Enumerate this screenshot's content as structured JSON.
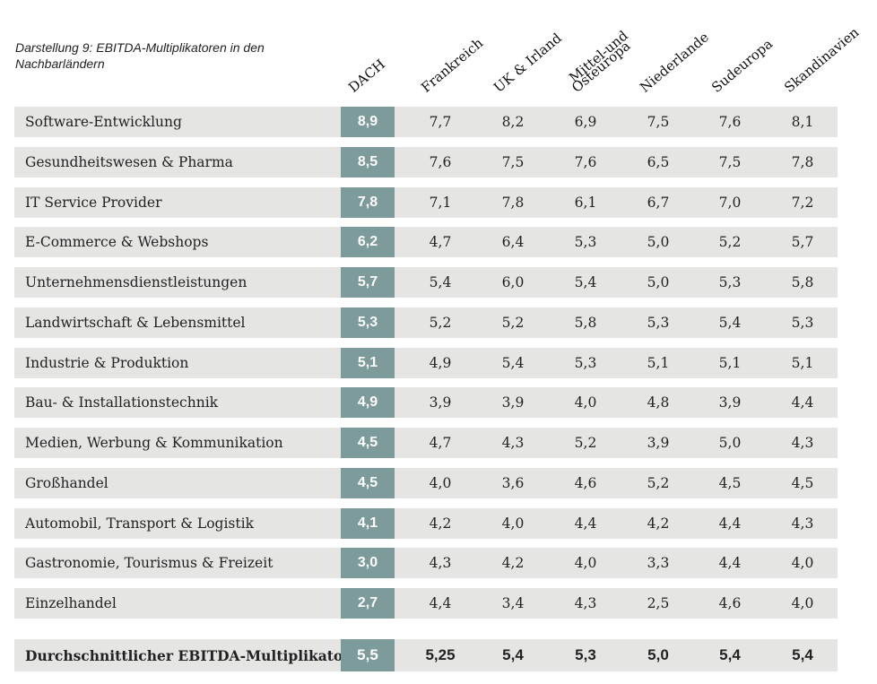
{
  "caption": "Darstellung 9: EBITDA-Multiplikatoren in den Nachbarländern",
  "chart_data": {
    "type": "table",
    "title": "Darstellung 9: EBITDA-Multiplikatoren in den Nachbarländern",
    "columns": [
      "DACH",
      "Frankreich",
      "UK & Irland",
      "Mittel-und Osteuropa",
      "Niederlande",
      "Sudeuropa",
      "Skandinavien"
    ],
    "column_lines": [
      [
        "DACH"
      ],
      [
        "Frankreich"
      ],
      [
        "UK & Irland"
      ],
      [
        "Mittel-und",
        "Osteuropa"
      ],
      [
        "Niederlande"
      ],
      [
        "Sudeuropa"
      ],
      [
        "Skandinavien"
      ]
    ],
    "rows": [
      {
        "label": "Software-Entwicklung",
        "values": [
          "8,9",
          "7,7",
          "8,2",
          "6,9",
          "7,5",
          "7,6",
          "8,1"
        ]
      },
      {
        "label": "Gesundheitswesen & Pharma",
        "values": [
          "8,5",
          "7,6",
          "7,5",
          "7,6",
          "6,5",
          "7,5",
          "7,8"
        ]
      },
      {
        "label": "IT Service Provider",
        "values": [
          "7,8",
          "7,1",
          "7,8",
          "6,1",
          "6,7",
          "7,0",
          "7,2"
        ]
      },
      {
        "label": "E-Commerce & Webshops",
        "values": [
          "6,2",
          "4,7",
          "6,4",
          "5,3",
          "5,0",
          "5,2",
          "5,7"
        ]
      },
      {
        "label": "Unternehmensdienstleistungen",
        "values": [
          "5,7",
          "5,4",
          "6,0",
          "5,4",
          "5,0",
          "5,3",
          "5,8"
        ]
      },
      {
        "label": "Landwirtschaft & Lebensmittel",
        "values": [
          "5,3",
          "5,2",
          "5,2",
          "5,8",
          "5,3",
          "5,4",
          "5,3"
        ]
      },
      {
        "label": "Industrie & Produktion",
        "values": [
          "5,1",
          "4,9",
          "5,4",
          "5,3",
          "5,1",
          "5,1",
          "5,1"
        ]
      },
      {
        "label": "Bau- & Installationstechnik",
        "values": [
          "4,9",
          "3,9",
          "3,9",
          "4,0",
          "4,8",
          "3,9",
          "4,4"
        ]
      },
      {
        "label": "Medien, Werbung & Kommunikation",
        "values": [
          "4,5",
          "4,7",
          "4,3",
          "5,2",
          "3,9",
          "5,0",
          "4,3"
        ]
      },
      {
        "label": "Großhandel",
        "values": [
          "4,5",
          "4,0",
          "3,6",
          "4,6",
          "5,2",
          "4,5",
          "4,5"
        ]
      },
      {
        "label": "Automobil, Transport & Logistik",
        "values": [
          "4,1",
          "4,2",
          "4,0",
          "4,4",
          "4,2",
          "4,4",
          "4,3"
        ]
      },
      {
        "label": "Gastronomie, Tourismus & Freizeit",
        "values": [
          "3,0",
          "4,3",
          "4,2",
          "4,0",
          "3,3",
          "4,4",
          "4,0"
        ]
      },
      {
        "label": "Einzelhandel",
        "values": [
          "2,7",
          "4,4",
          "3,4",
          "4,3",
          "2,5",
          "4,6",
          "4,0"
        ]
      }
    ],
    "average": {
      "label": "Durchschnittlicher EBITDA-Multiplikator",
      "values": [
        "5,5",
        "5,25",
        "5,4",
        "5,3",
        "5,0",
        "5,4",
        "5,4"
      ]
    }
  },
  "colors": {
    "row_background": "#e5e6e4",
    "dach_column": "#7c9b9a",
    "dach_text": "#ffffff",
    "text": "#222222"
  }
}
